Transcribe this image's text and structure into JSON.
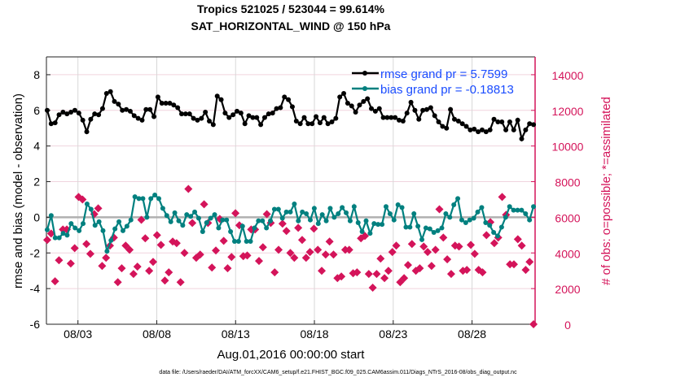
{
  "chart_data": {
    "type": "line",
    "title": [
      "Tropics 521025 / 523044 = 99.614%",
      "SAT_HORIZONTAL_WIND @ 150 hPa"
    ],
    "xlabel": "Aug.01,2016 00:00:00 start",
    "ylabel": "rmse and bias (model - observation)",
    "ylabel_right": "# of obs: o=possible; *=assimilated",
    "footer": "data file: /Users/raeder/DAI/ATM_forcXX/CAM6_setup/f.e21.FHIST_BGC.f09_025.CAM6assim.011/Diags_NTrS_2016-08/obs_diag_output.nc",
    "xlim_days": [
      0,
      31
    ],
    "xticks": [
      {
        "day": 2,
        "label": "08/03"
      },
      {
        "day": 7,
        "label": "08/08"
      },
      {
        "day": 12,
        "label": "08/13"
      },
      {
        "day": 17,
        "label": "08/18"
      },
      {
        "day": 22,
        "label": "08/23"
      },
      {
        "day": 27,
        "label": "08/28"
      }
    ],
    "ylim": [
      -6,
      9
    ],
    "yticks": [
      -6,
      -4,
      -2,
      0,
      2,
      4,
      6,
      8
    ],
    "ylim_right": [
      0,
      15000
    ],
    "yticks_right": [
      0,
      2000,
      4000,
      6000,
      8000,
      10000,
      12000,
      14000
    ],
    "grid": true,
    "legend_position": "top-right",
    "colors": {
      "rmse": "#000000",
      "bias": "#00807f",
      "obs": "#d4145a",
      "legend_text": "#1a4cff",
      "zero": "#b0b0b0"
    },
    "series": [
      {
        "name": "rmse grand pr = 5.7599",
        "key": "rmse",
        "values": [
          6.0,
          5.25,
          5.3,
          5.75,
          5.9,
          5.8,
          5.9,
          6.0,
          5.85,
          5.45,
          4.8,
          5.5,
          5.8,
          5.75,
          6.1,
          6.95,
          7.05,
          6.5,
          6.35,
          6.0,
          6.05,
          5.95,
          5.7,
          5.55,
          5.45,
          6.05,
          6.05,
          5.65,
          6.75,
          6.4,
          6.4,
          6.4,
          6.3,
          6.15,
          5.8,
          5.8,
          5.8,
          5.55,
          5.45,
          5.55,
          5.9,
          5.4,
          5.2,
          6.8,
          6.6,
          5.85,
          5.6,
          5.75,
          5.95,
          5.85,
          5.25,
          5.7,
          5.6,
          5.6,
          5.2,
          5.6,
          5.8,
          5.85,
          6.1,
          6.15,
          6.75,
          6.6,
          6.2,
          5.4,
          5.25,
          5.6,
          5.25,
          5.25,
          5.65,
          5.3,
          5.6,
          5.25,
          5.35,
          5.55,
          6.75,
          6.95,
          6.4,
          6.25,
          5.9,
          6.3,
          6.5,
          6.65,
          6.1,
          5.95,
          6.1,
          5.6,
          5.6,
          5.6,
          5.6,
          5.45,
          5.4,
          5.85,
          6.45,
          6.0,
          5.5,
          6.0,
          6.05,
          6.15,
          5.7,
          5.35,
          5.1,
          5.0,
          6.05,
          5.5,
          5.4,
          5.25,
          5.1,
          4.9,
          4.95,
          4.8,
          4.9,
          4.8,
          4.9,
          5.5,
          5.35,
          5.35,
          4.9,
          5.35,
          4.9,
          5.45,
          4.4,
          4.9,
          5.25,
          5.2
        ]
      },
      {
        "name": "bias grand pr = -0.18813",
        "key": "bias",
        "values": [
          -0.7,
          0.1,
          -1.15,
          -1.15,
          -0.9,
          -1.0,
          -0.35,
          -0.6,
          -0.75,
          -0.35,
          0.75,
          0.45,
          -0.45,
          -0.25,
          -0.75,
          -1.9,
          -1.3,
          -0.65,
          -0.25,
          -0.75,
          -0.5,
          -0.15,
          1.15,
          1.05,
          1.05,
          0.0,
          1.05,
          1.25,
          1.05,
          0.5,
          0.1,
          -0.25,
          0.25,
          -0.2,
          -0.45,
          0.15,
          0.05,
          0.3,
          -0.05,
          -0.8,
          -0.3,
          -0.05,
          0.15,
          -0.6,
          -0.15,
          -0.15,
          -0.8,
          -1.35,
          -1.35,
          -0.5,
          -1.35,
          -1.35,
          -0.6,
          -0.2,
          -0.2,
          -0.6,
          -0.2,
          0.45,
          0.45,
          -0.05,
          0.3,
          0.3,
          0.75,
          -0.2,
          0.3,
          0.2,
          -0.15,
          0.5,
          -0.35,
          0.15,
          -0.2,
          0.5,
          0.0,
          0.2,
          0.55,
          0.25,
          -0.2,
          0.6,
          -0.3,
          -0.8,
          -0.2,
          -0.9,
          -0.35,
          -0.4,
          -0.4,
          0.6,
          0.2,
          -0.15,
          0.7,
          0.55,
          -0.55,
          -0.55,
          0.2,
          -0.5,
          -1.25,
          -0.6,
          -0.65,
          -0.85,
          -0.75,
          -0.6,
          0.2,
          0.0,
          0.7,
          1.05,
          -0.15,
          -0.3,
          -0.15,
          -0.05,
          0.3,
          0.55,
          -0.3,
          -0.45,
          -0.85,
          -1.05,
          -0.55,
          0.0,
          0.6,
          0.4,
          0.4,
          0.4,
          0.2,
          -0.15,
          0.6
        ]
      },
      {
        "name": "# of obs",
        "key": "obs",
        "values": [
          4730,
          5090,
          2410,
          3590,
          5320,
          5320,
          3410,
          4270,
          7140,
          7000,
          4500,
          3950,
          6180,
          6500,
          3270,
          3730,
          4410,
          4860,
          2360,
          3140,
          4410,
          4180,
          2820,
          3230,
          5860,
          4820,
          3000,
          3500,
          5000,
          4450,
          2450,
          2910,
          4640,
          4550,
          2360,
          4000,
          7590,
          5680,
          3730,
          3910,
          6730,
          5680,
          3180,
          4140,
          5910,
          4680,
          3140,
          3770,
          6230,
          5550,
          3820,
          3860,
          5320,
          5320,
          3550,
          4320,
          6180,
          5680,
          2910,
          4180,
          5640,
          5230,
          4000,
          3730,
          5410,
          4730,
          3730,
          4050,
          5360,
          4180,
          3000,
          3910,
          4640,
          3910,
          2590,
          2680,
          4180,
          4180,
          2860,
          2910,
          4820,
          4950,
          2820,
          2050,
          2820,
          3680,
          2590,
          3000,
          4050,
          4410,
          2360,
          2590,
          3320,
          4500,
          3000,
          3140,
          4360,
          4050,
          3270,
          4180,
          6450,
          4860,
          3640,
          2820,
          4410,
          4360,
          3000,
          3050,
          4450,
          3950,
          3050,
          2910,
          5000,
          5730,
          4550,
          4860,
          7140,
          6140,
          3360,
          3360,
          4770,
          4410,
          3050,
          3500,
          0
        ]
      }
    ]
  }
}
